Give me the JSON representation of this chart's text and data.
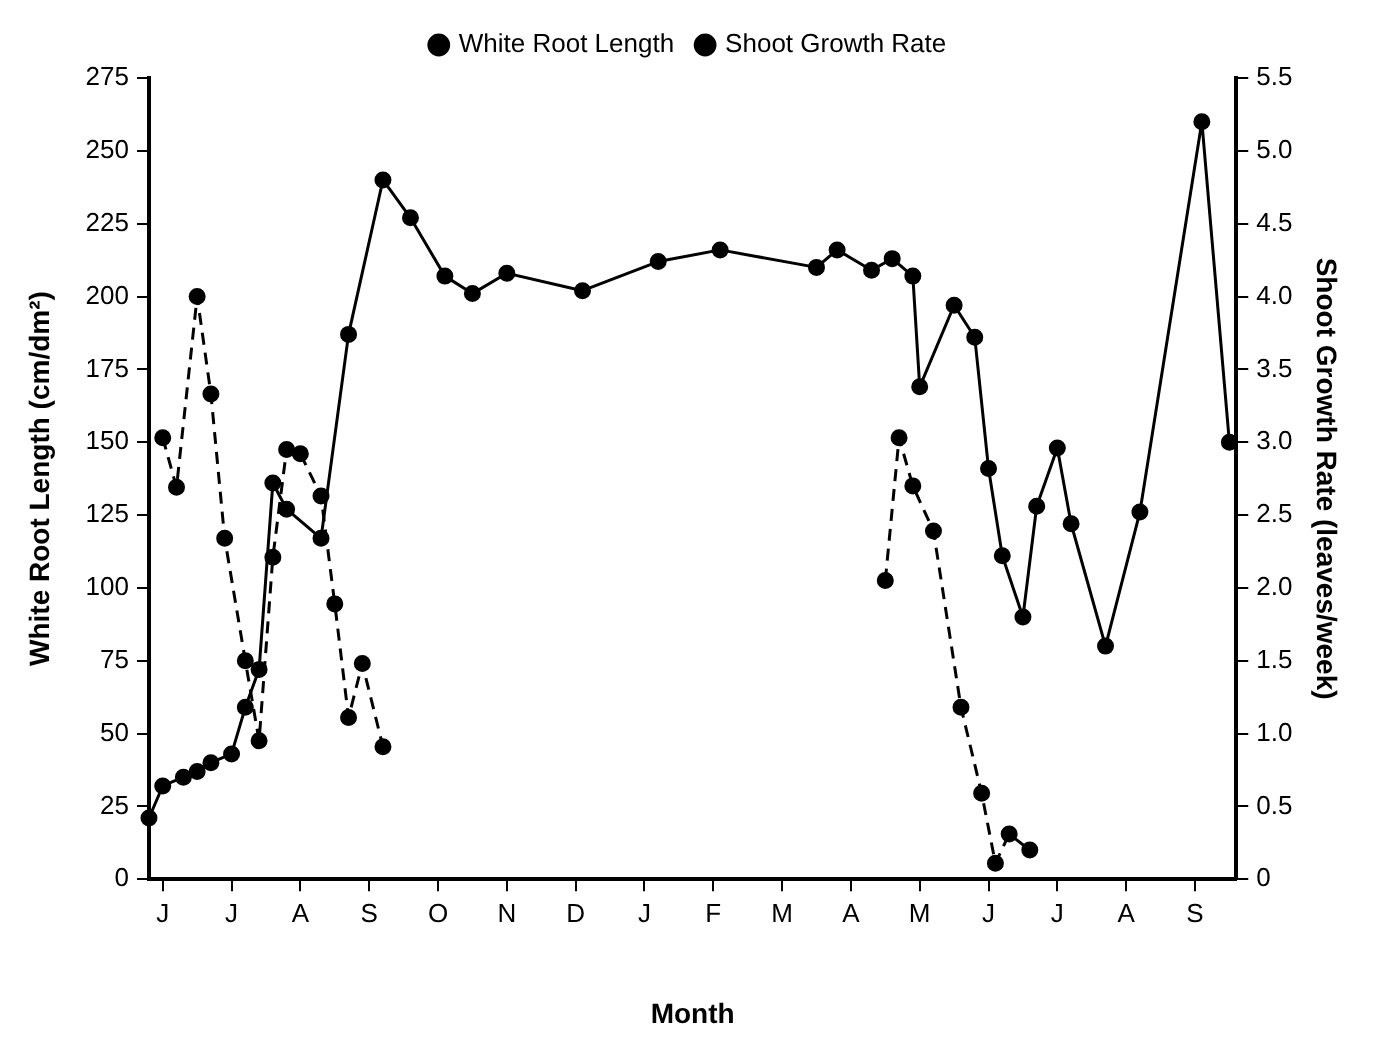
{
  "chart_data": {
    "type": "line",
    "xlabel": "Month",
    "ylabel": "White Root Length (cm/dm²)",
    "y2label": "Shoot Growth Rate (leaves/week)",
    "categories": [
      null,
      null,
      "J",
      null,
      null,
      null,
      null,
      null,
      null,
      null,
      null,
      null,
      "J",
      null,
      null,
      null,
      null,
      null,
      null,
      null,
      null,
      null,
      "A",
      null,
      null,
      null,
      null,
      null,
      null,
      null,
      null,
      null,
      "S",
      null,
      null,
      null,
      null,
      null,
      null,
      null,
      null,
      null,
      "O",
      null,
      null,
      null,
      null,
      null,
      null,
      null,
      null,
      null,
      "N",
      null,
      null,
      null,
      null,
      null,
      null,
      null,
      null,
      null,
      "D",
      null,
      null,
      null,
      null,
      null,
      null,
      null,
      null,
      null,
      "J",
      null,
      null,
      null,
      null,
      null,
      null,
      null,
      null,
      null,
      "F",
      null,
      null,
      null,
      null,
      null,
      null,
      null,
      null,
      null,
      "M",
      null,
      null,
      null,
      null,
      null,
      null,
      null,
      null,
      null,
      "A",
      null,
      null,
      null,
      null,
      null,
      null,
      null,
      null,
      null,
      "M",
      null,
      null,
      null,
      null,
      null,
      null,
      null,
      null,
      null,
      "J",
      null,
      null,
      null,
      null,
      null,
      null,
      null,
      null,
      null,
      "J",
      null,
      null,
      null,
      null,
      null,
      null,
      null,
      null,
      null,
      "A",
      null,
      null,
      null,
      null,
      null,
      null,
      null,
      null,
      null,
      "S",
      null,
      null,
      null,
      null,
      null,
      null
    ],
    "ylim": [
      0,
      275
    ],
    "yticks": [
      0,
      25,
      50,
      75,
      100,
      125,
      150,
      175,
      200,
      225,
      250,
      275
    ],
    "y2lim": [
      0,
      5.5
    ],
    "y2ticks": [
      0,
      {
        "value": 0.5,
        "label": "0.5"
      },
      {
        "value": 1,
        "label": "1.0"
      },
      {
        "value": 1.5,
        "label": "1.5"
      },
      {
        "value": 2,
        "label": "2.0"
      },
      {
        "value": 2.5,
        "label": "2.5"
      },
      {
        "value": 3,
        "label": "3.0"
      },
      {
        "value": 3.5,
        "label": "3.5"
      },
      {
        "value": 4,
        "label": "4.0"
      },
      {
        "value": 4.5,
        "label": "4.5"
      },
      {
        "value": 5,
        "label": "5.0"
      },
      {
        "value": 5.5,
        "label": "5.5"
      }
    ],
    "grid": false,
    "legend": "top",
    "marker": "circle",
    "series": [
      {
        "name": "White Root Length",
        "color": "#000000",
        "line_style": "solid",
        "values": [
          21,
          null,
          32,
          null,
          null,
          35,
          null,
          37,
          null,
          40,
          null,
          null,
          43,
          null,
          59,
          null,
          72,
          null,
          136,
          null,
          127,
          null,
          null,
          null,
          null,
          117,
          null,
          null,
          null,
          187,
          null,
          null,
          null,
          null,
          240,
          null,
          null,
          null,
          227,
          null,
          null,
          null,
          null,
          207,
          null,
          null,
          null,
          201,
          null,
          null,
          null,
          null,
          208,
          null,
          null,
          null,
          null,
          null,
          null,
          null,
          null,
          null,
          null,
          202,
          null,
          null,
          null,
          null,
          null,
          null,
          null,
          null,
          null,
          null,
          212,
          null,
          null,
          null,
          null,
          null,
          null,
          null,
          null,
          216,
          null,
          null,
          null,
          null,
          null,
          null,
          null,
          null,
          null,
          null,
          null,
          null,
          null,
          210,
          null,
          null,
          216,
          null,
          null,
          null,
          null,
          209,
          null,
          null,
          213,
          null,
          null,
          207,
          169,
          null,
          null,
          null,
          null,
          197,
          null,
          null,
          186,
          null,
          141,
          null,
          111,
          null,
          null,
          90,
          null,
          128,
          null,
          null,
          148,
          null,
          122,
          null,
          null,
          null,
          null,
          80,
          null,
          null,
          null,
          null,
          126,
          null,
          null,
          null,
          null,
          null,
          null,
          null,
          null,
          260,
          null,
          null,
          null,
          150,
          null
        ]
      },
      {
        "name": "Shoot Growth Rate",
        "color": "#000000",
        "line_style": "dashed",
        "axis": "y2",
        "values": [
          null,
          null,
          3.03,
          null,
          2.69,
          null,
          null,
          4.0,
          null,
          3.33,
          null,
          2.34,
          null,
          null,
          1.5,
          null,
          0.95,
          null,
          2.21,
          null,
          2.95,
          null,
          2.92,
          null,
          null,
          2.63,
          null,
          1.89,
          null,
          1.11,
          null,
          1.48,
          null,
          null,
          0.91,
          null,
          null,
          null,
          null,
          null,
          null,
          null,
          null,
          null,
          null,
          null,
          null,
          null,
          null,
          null,
          null,
          null,
          null,
          null,
          null,
          null,
          null,
          null,
          null,
          null,
          null,
          null,
          null,
          null,
          null,
          null,
          null,
          null,
          null,
          null,
          null,
          null,
          null,
          null,
          null,
          null,
          null,
          null,
          null,
          null,
          null,
          null,
          null,
          null,
          null,
          null,
          null,
          null,
          null,
          null,
          null,
          null,
          null,
          null,
          null,
          null,
          null,
          null,
          null,
          null,
          null,
          null,
          null,
          null,
          null,
          null,
          null,
          null,
          null,
          null,
          null,
          null,
          null,
          null,
          null,
          null,
          null,
          null,
          null,
          null,
          null,
          null,
          null,
          null,
          null,
          null,
          null,
          null,
          null,
          null,
          null,
          null,
          null,
          null,
          null,
          null,
          null,
          null,
          null,
          null,
          null,
          null,
          null,
          null,
          null,
          null,
          null,
          null,
          null,
          null,
          null,
          null,
          null,
          null,
          null,
          null,
          null,
          null,
          null
        ]
      },
      {
        "color": "#000000",
        "line_style": "dashed",
        "axis": "y2",
        "values": [
          null,
          null,
          null,
          null,
          null,
          null,
          null,
          null,
          null,
          null,
          null,
          null,
          null,
          null,
          null,
          null,
          null,
          null,
          null,
          null,
          null,
          null,
          null,
          null,
          null,
          null,
          null,
          null,
          null,
          null,
          null,
          null,
          null,
          null,
          null,
          null,
          null,
          null,
          null,
          null,
          null,
          null,
          null,
          null,
          null,
          null,
          null,
          null,
          null,
          null,
          null,
          null,
          null,
          null,
          null,
          null,
          null,
          null,
          null,
          null,
          null,
          null,
          null,
          null,
          null,
          null,
          null,
          null,
          null,
          null,
          null,
          null,
          null,
          null,
          null,
          null,
          null,
          null,
          null,
          null,
          null,
          null,
          null,
          null,
          null,
          null,
          null,
          null,
          null,
          null,
          null,
          null,
          null,
          null,
          null,
          null,
          null,
          null,
          null,
          null,
          null,
          null,
          null,
          null,
          null,
          null,
          null,
          2.05,
          null,
          3.03,
          null,
          2.7,
          null,
          null,
          2.39,
          null,
          null,
          null,
          1.18,
          null,
          null,
          0.59,
          null,
          0.11,
          null,
          0.31,
          null,
          null,
          0.2,
          null,
          null,
          null,
          null,
          null,
          null,
          null,
          null,
          null,
          null,
          null,
          null,
          null,
          null,
          null,
          null,
          null,
          null,
          null,
          null,
          null,
          null,
          null,
          null,
          null,
          null,
          null,
          null,
          null,
          null
        ]
      }
    ]
  }
}
